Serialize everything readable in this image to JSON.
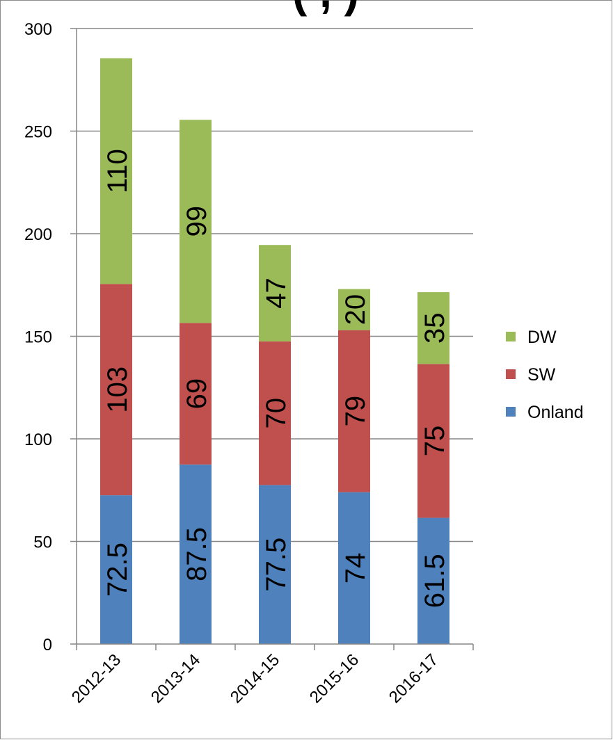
{
  "chart_data": {
    "type": "bar",
    "stacked": true,
    "title_fragment": "(      ,            )",
    "categories": [
      "2012-13",
      "2013-14",
      "2014-15",
      "2015-16",
      "2016-17"
    ],
    "series": [
      {
        "name": "Onland",
        "color": "#4f81bd",
        "values": [
          72.5,
          87.5,
          77.5,
          74,
          61.5
        ]
      },
      {
        "name": "SW",
        "color": "#c0504d",
        "values": [
          103,
          69,
          70,
          79,
          75
        ]
      },
      {
        "name": "DW",
        "color": "#9bbb59",
        "values": [
          110,
          99,
          47,
          20,
          35
        ]
      }
    ],
    "ylim": [
      0,
      300
    ],
    "yticks": [
      0,
      50,
      100,
      150,
      200,
      250,
      300
    ],
    "grid": true,
    "legend_position": "right",
    "legend_order": [
      "DW",
      "SW",
      "Onland"
    ],
    "xlabel": "",
    "ylabel": ""
  }
}
